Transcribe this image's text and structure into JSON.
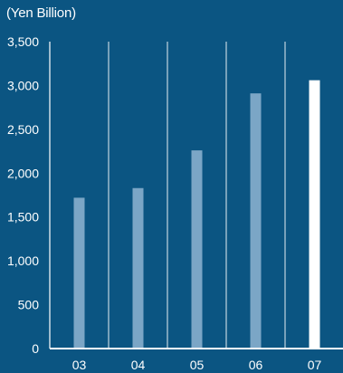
{
  "chart_data": {
    "type": "bar",
    "unit_label": "(Yen Billion)",
    "categories": [
      "03",
      "04",
      "05",
      "06",
      "07"
    ],
    "values": [
      1720,
      1830,
      2260,
      2910,
      3060
    ],
    "highlight_index": 4,
    "ylim": [
      0,
      3500
    ],
    "yticks": [
      0,
      500,
      1000,
      1500,
      2000,
      2500,
      3000,
      3500
    ],
    "ytick_labels": [
      "0",
      "500",
      "1,000",
      "1,500",
      "2,000",
      "2,500",
      "3,000",
      "3,500"
    ],
    "grid": "vertical separators",
    "colors": {
      "background": "#0b5582",
      "bar": "#7ba6c6",
      "bar_highlight": "#ffffff",
      "text": "#ffffff",
      "lines": "#ffffff"
    }
  }
}
